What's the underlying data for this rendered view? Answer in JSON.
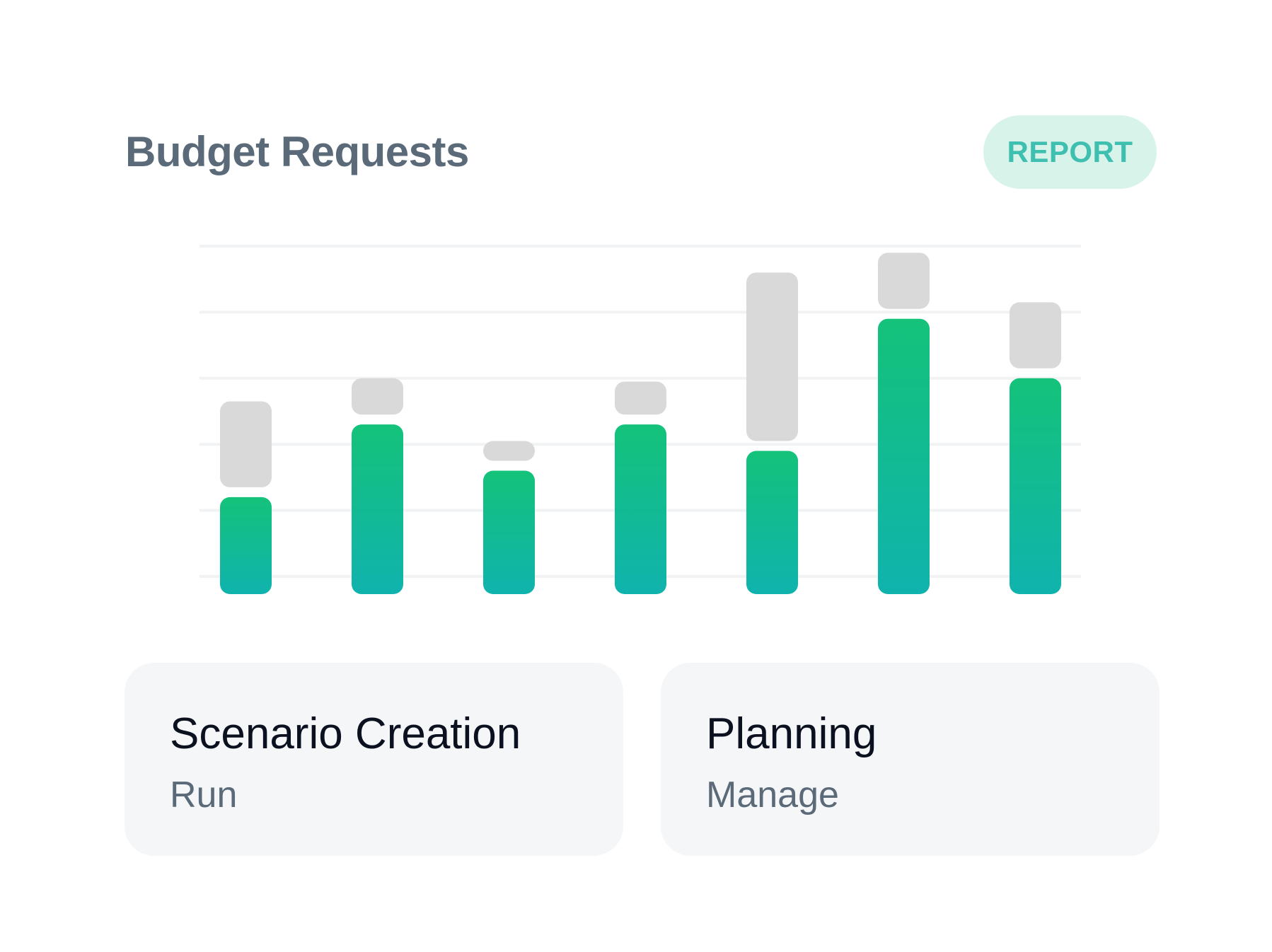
{
  "header": {
    "title": "Budget Requests",
    "report_label": "REPORT"
  },
  "colors": {
    "title": "#5b6a78",
    "report_bg": "#d8f4ea",
    "report_text": "#3fbfb0",
    "bar_top": "#14c27a",
    "bar_bottom": "#10b3ad",
    "bar_gray": "#d9d9d9",
    "grid": "#f1f2f3",
    "card_bg": "#f4f6f8"
  },
  "chart_data": {
    "type": "bar",
    "stacked": true,
    "grid": true,
    "gridlines": 6,
    "ylim": [
      0,
      5
    ],
    "categories": [
      "",
      "",
      "",
      "",
      "",
      "",
      ""
    ],
    "series": [
      {
        "color": "green-gradient",
        "values": [
          1.2,
          2.3,
          1.6,
          2.3,
          1.9,
          3.9,
          3.0
        ]
      },
      {
        "color": "gray",
        "values": [
          1.45,
          0.7,
          0.45,
          0.65,
          2.7,
          1.0,
          1.15
        ]
      }
    ]
  },
  "cards": [
    {
      "title": "Scenario Creation",
      "subtitle": "Run"
    },
    {
      "title": "Planning",
      "subtitle": "Manage"
    }
  ]
}
